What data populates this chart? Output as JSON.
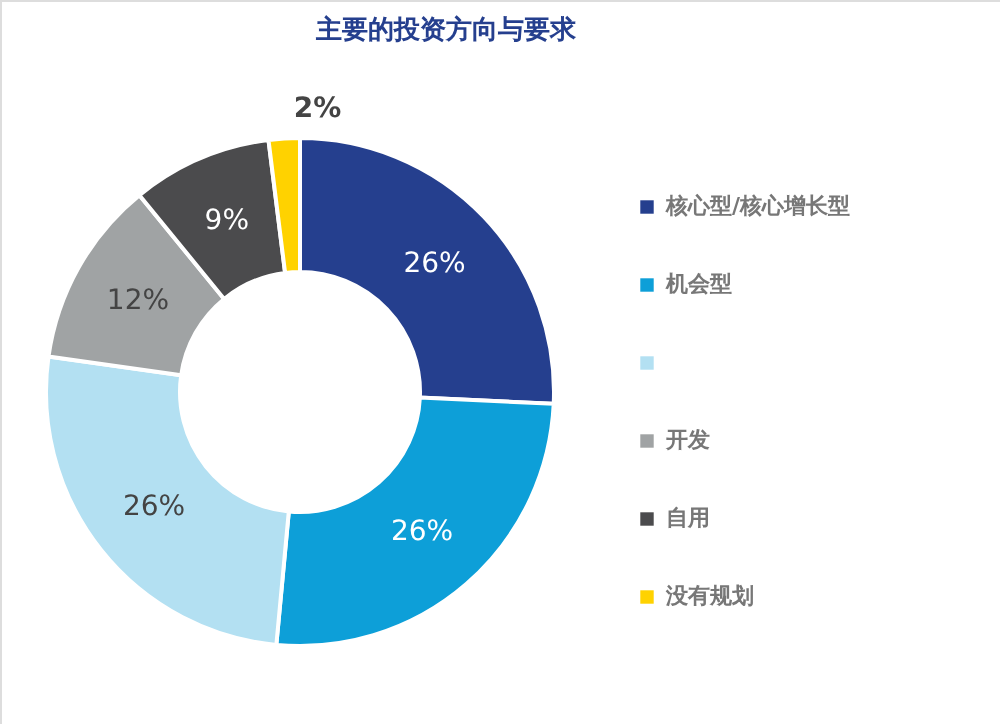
{
  "chart_data": {
    "type": "donut",
    "title": "主要的投资方向与要求",
    "categories": [
      "核心型/核心增长型",
      "机会型",
      null,
      "开发",
      "自用",
      "没有规划"
    ],
    "values": [
      26,
      26,
      26,
      12,
      9,
      2
    ],
    "colors": [
      "#253f8e",
      "#0d9fd8",
      "#b3e0f2",
      "#a0a3a4",
      "#4b4b4d",
      "#ffd200"
    ],
    "value_labels": [
      "26%",
      "26%",
      "26%",
      "12%",
      "9%",
      "2%"
    ],
    "legend": "right"
  }
}
